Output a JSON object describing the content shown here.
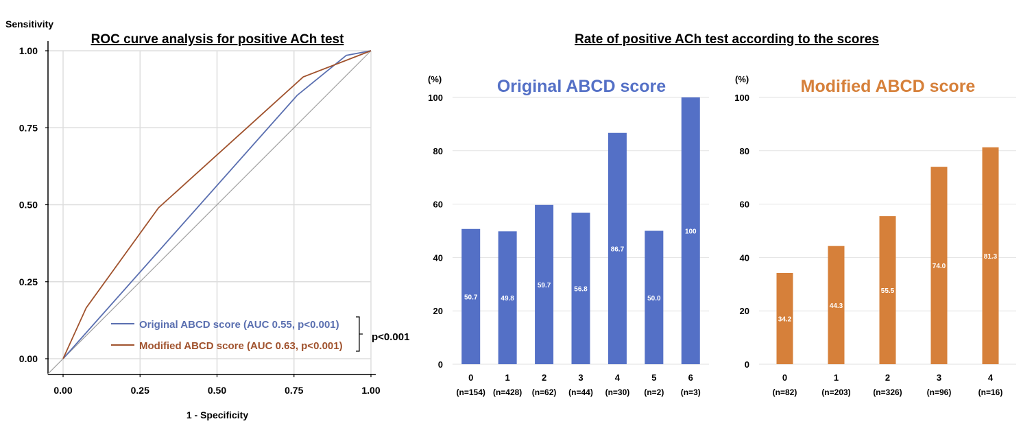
{
  "roc": {
    "title": "ROC curve analysis for positive ACh test",
    "ylabel": "Sensitivity",
    "xlabel": "1 - Specificity",
    "pvalue_label": "p<0.001"
  },
  "rates": {
    "title": "Rate of positive ACh test according to the scores",
    "unit_label": "(%)"
  },
  "colors": {
    "original": "#5470c6",
    "modified": "#d6803a",
    "roc_original": "#5a6fb0",
    "roc_modified": "#a0522d",
    "diagonal": "#a0a0a0",
    "grid": "#dddddd"
  },
  "chart_data": [
    {
      "type": "line",
      "title": "ROC curve analysis for positive ACh test",
      "xlabel": "1 - Specificity",
      "ylabel": "Sensitivity",
      "xlim": [
        0,
        1
      ],
      "ylim": [
        0,
        1
      ],
      "xticks": [
        "0.00",
        "0.25",
        "0.50",
        "0.75",
        "1.00"
      ],
      "yticks": [
        "0.00",
        "0.25",
        "0.50",
        "0.75",
        "1.00"
      ],
      "grid": true,
      "legend_position": "bottom-right",
      "series": [
        {
          "name": "Original ABCD score (AUC 0.55, p<0.001)",
          "color": "#5a6fb0",
          "x": [
            0,
            0.76,
            0.92,
            1.0
          ],
          "y": [
            0,
            0.855,
            0.985,
            1.0
          ]
        },
        {
          "name": "Modified ABCD score (AUC 0.63, p<0.001)",
          "color": "#a0522d",
          "x": [
            0,
            0.075,
            0.31,
            0.78,
            1.0
          ],
          "y": [
            0,
            0.165,
            0.49,
            0.915,
            1.0
          ]
        }
      ],
      "reference_line": {
        "x": [
          0,
          1
        ],
        "y": [
          0,
          1
        ],
        "color": "#a0a0a0"
      },
      "annotation": "p<0.001"
    },
    {
      "type": "bar",
      "title": "Original ABCD score",
      "ylabel": "(%)",
      "ylim": [
        0,
        100
      ],
      "yticks": [
        "0",
        "20",
        "40",
        "60",
        "80",
        "100"
      ],
      "grid": true,
      "color": "#5470c6",
      "categories": [
        "0",
        "1",
        "2",
        "3",
        "4",
        "5",
        "6"
      ],
      "counts": [
        "(n=154)",
        "(n=428)",
        "(n=62)",
        "(n=44)",
        "(n=30)",
        "(n=2)",
        "(n=3)"
      ],
      "values": [
        50.7,
        49.8,
        59.7,
        56.8,
        86.7,
        50.0,
        100
      ],
      "labels": [
        "50.7",
        "49.8",
        "59.7",
        "56.8",
        "86.7",
        "50.0",
        "100"
      ]
    },
    {
      "type": "bar",
      "title": "Modified ABCD score",
      "ylabel": "(%)",
      "ylim": [
        0,
        100
      ],
      "yticks": [
        "0",
        "20",
        "40",
        "60",
        "80",
        "100"
      ],
      "grid": true,
      "color": "#d6803a",
      "categories": [
        "0",
        "1",
        "2",
        "3",
        "4"
      ],
      "counts": [
        "(n=82)",
        "(n=203)",
        "(n=326)",
        "(n=96)",
        "(n=16)"
      ],
      "values": [
        34.2,
        44.3,
        55.5,
        74.0,
        81.3
      ],
      "labels": [
        "34.2",
        "44.3",
        "55.5",
        "74.0",
        "81.3"
      ]
    }
  ]
}
